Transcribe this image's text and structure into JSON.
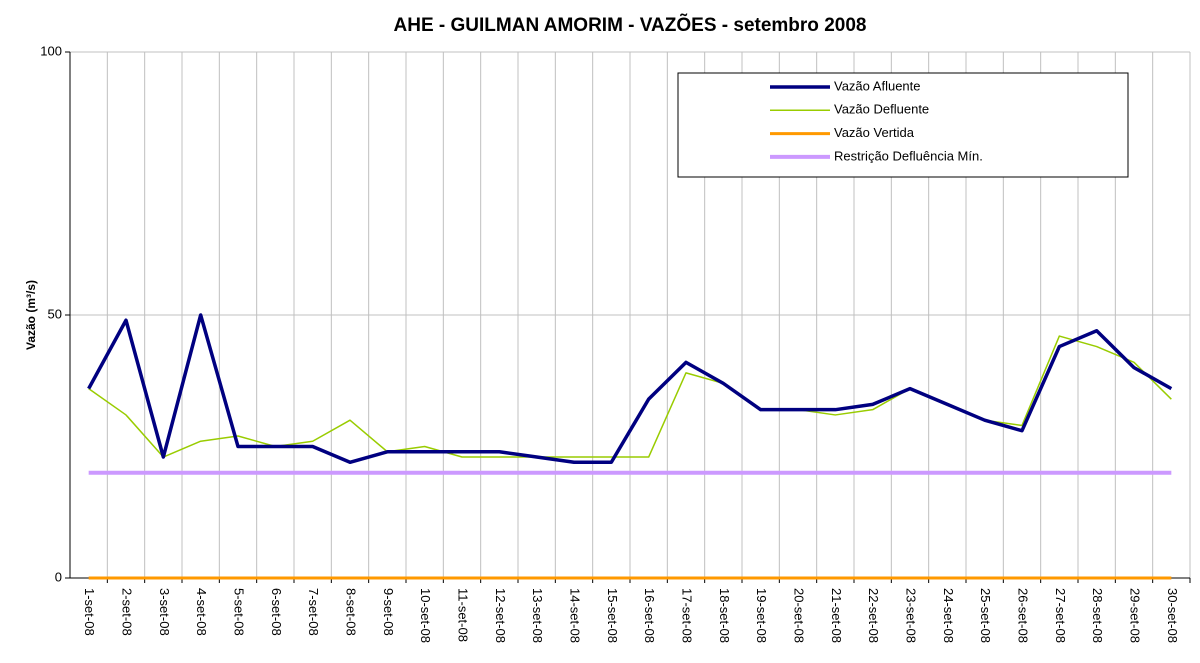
{
  "chart_data": {
    "type": "line",
    "title": "AHE - GUILMAN AMORIM - VAZÕES - setembro 2008",
    "y_label": "Vazão (m³/s)",
    "categories": [
      "1-set-08",
      "2-set-08",
      "3-set-08",
      "4-set-08",
      "5-set-08",
      "6-set-08",
      "7-set-08",
      "8-set-08",
      "9-set-08",
      "10-set-08",
      "11-set-08",
      "12-set-08",
      "13-set-08",
      "14-set-08",
      "15-set-08",
      "16-set-08",
      "17-set-08",
      "18-set-08",
      "19-set-08",
      "20-set-08",
      "21-set-08",
      "22-set-08",
      "23-set-08",
      "24-set-08",
      "25-set-08",
      "26-set-08",
      "27-set-08",
      "28-set-08",
      "29-set-08",
      "30-set-08"
    ],
    "series": [
      {
        "name": "Vazão Afluente",
        "color": "#000080",
        "values": [
          36,
          49,
          23,
          50,
          25,
          25,
          25,
          22,
          24,
          24,
          24,
          24,
          23,
          22,
          22,
          34,
          41,
          37,
          32,
          32,
          32,
          33,
          36,
          33,
          30,
          28,
          44,
          47,
          40,
          36
        ]
      },
      {
        "name": "Vazão Defluente",
        "color": "#99cc00",
        "values": [
          36,
          31,
          23,
          26,
          27,
          25,
          26,
          30,
          24,
          25,
          23,
          23,
          23,
          23,
          23,
          23,
          39,
          37,
          32,
          32,
          31,
          32,
          36,
          33,
          30,
          29,
          46,
          44,
          41,
          34
        ]
      },
      {
        "name": "Vazão Vertida",
        "color": "#ff9900",
        "values": [
          0,
          0,
          0,
          0,
          0,
          0,
          0,
          0,
          0,
          0,
          0,
          0,
          0,
          0,
          0,
          0,
          0,
          0,
          0,
          0,
          0,
          0,
          0,
          0,
          0,
          0,
          0,
          0,
          0,
          0
        ]
      },
      {
        "name": "Restrição Defluência Mín.",
        "color": "#cc99ff",
        "values": [
          20,
          20,
          20,
          20,
          20,
          20,
          20,
          20,
          20,
          20,
          20,
          20,
          20,
          20,
          20,
          20,
          20,
          20,
          20,
          20,
          20,
          20,
          20,
          20,
          20,
          20,
          20,
          20,
          20,
          20
        ]
      }
    ],
    "ylim": [
      0,
      100
    ],
    "yticks": [
      0,
      50,
      100
    ],
    "grid": true,
    "legend": "upper right"
  }
}
